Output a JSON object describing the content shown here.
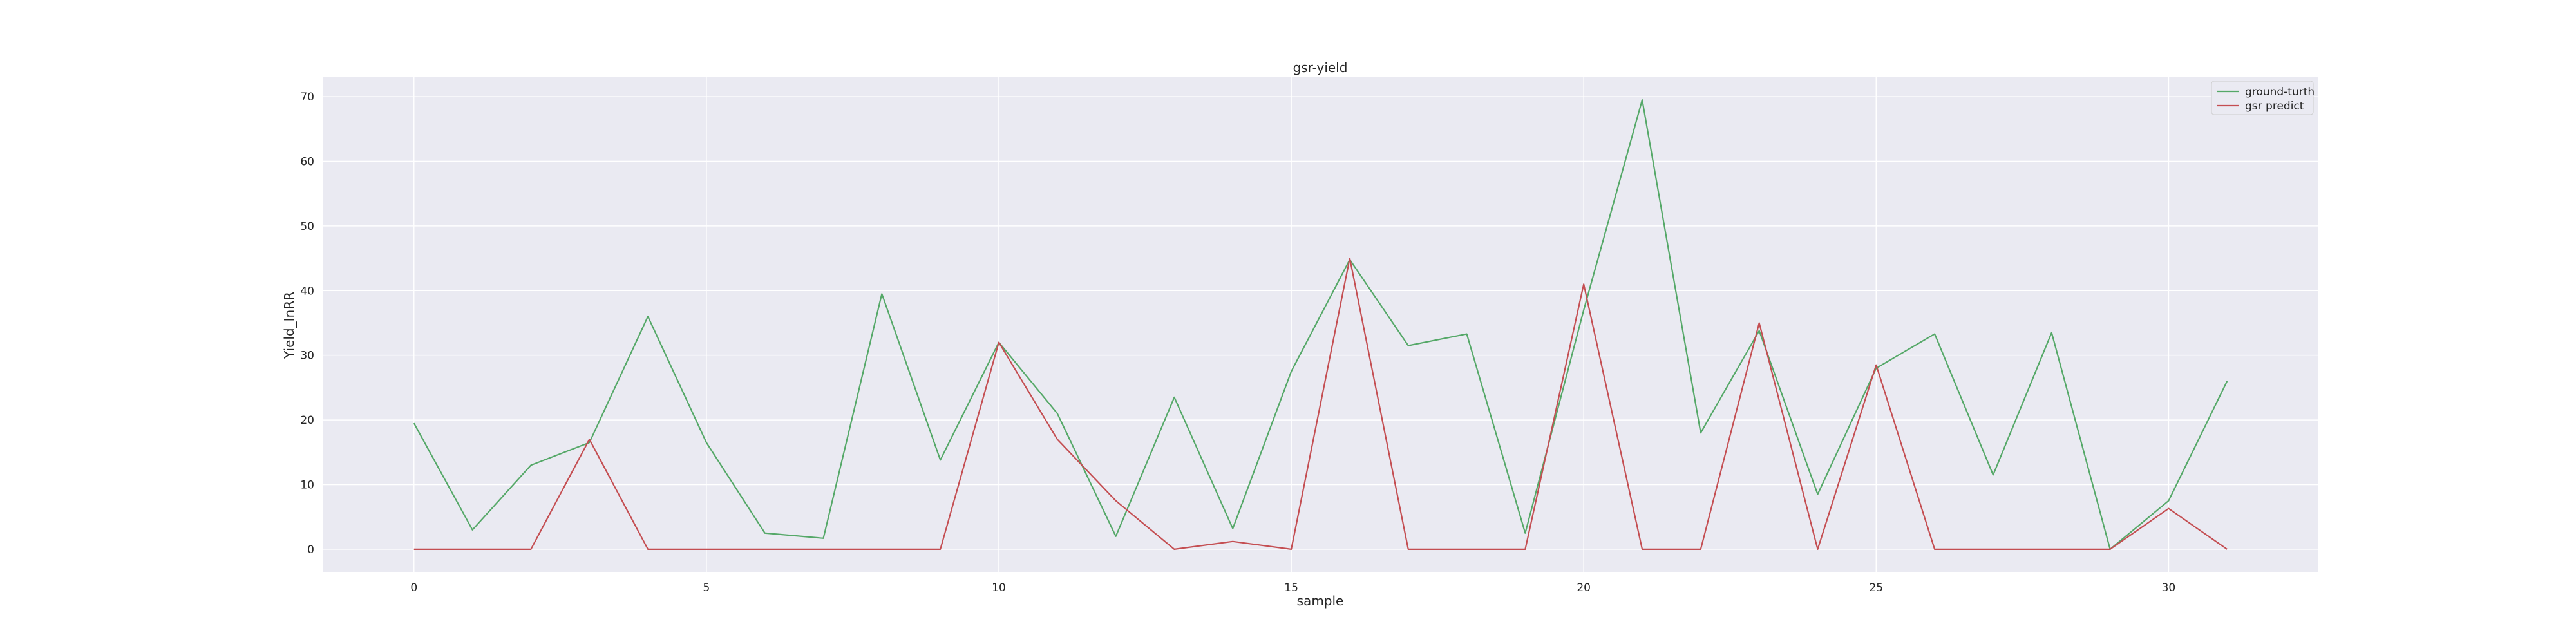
{
  "chart_data": {
    "type": "line",
    "title": "gsr-yield",
    "xlabel": "sample",
    "ylabel": "Yield_InRR",
    "xlim": [
      -1.55,
      32.55
    ],
    "ylim": [
      -3.5,
      73.0
    ],
    "xticks": [
      0,
      5,
      10,
      15,
      20,
      25,
      30
    ],
    "yticks": [
      0,
      10,
      20,
      30,
      40,
      50,
      60,
      70
    ],
    "grid": true,
    "legend_position": "top-right",
    "x": [
      0,
      1,
      2,
      3,
      4,
      5,
      6,
      7,
      8,
      9,
      10,
      11,
      12,
      13,
      14,
      15,
      16,
      17,
      18,
      19,
      20,
      21,
      22,
      23,
      24,
      25,
      26,
      27,
      28,
      29,
      30,
      31
    ],
    "series": [
      {
        "name": "ground-turth",
        "color": "#55a868",
        "values": [
          19.5,
          3.0,
          13.0,
          16.5,
          36.0,
          16.5,
          2.5,
          1.7,
          39.5,
          13.8,
          32.0,
          21.0,
          2.0,
          23.5,
          3.2,
          27.5,
          44.8,
          31.5,
          33.3,
          2.5,
          37.0,
          69.5,
          18.0,
          33.8,
          8.5,
          28.0,
          33.3,
          11.5,
          33.5,
          0.0,
          7.5,
          26.0
        ]
      },
      {
        "name": "gsr predict",
        "color": "#c44e52",
        "values": [
          0.0,
          0.0,
          0.0,
          17.0,
          0.0,
          0.0,
          0.0,
          0.0,
          0.0,
          0.0,
          32.0,
          17.0,
          7.5,
          0.0,
          1.2,
          0.0,
          45.0,
          0.0,
          0.0,
          0.0,
          41.0,
          0.0,
          0.0,
          35.0,
          0.0,
          28.5,
          0.0,
          0.0,
          0.0,
          0.0,
          6.3,
          0.0
        ]
      }
    ],
    "colors": {
      "plot_background": "#eaeaf2",
      "grid": "#ffffff",
      "text": "#262626"
    }
  }
}
